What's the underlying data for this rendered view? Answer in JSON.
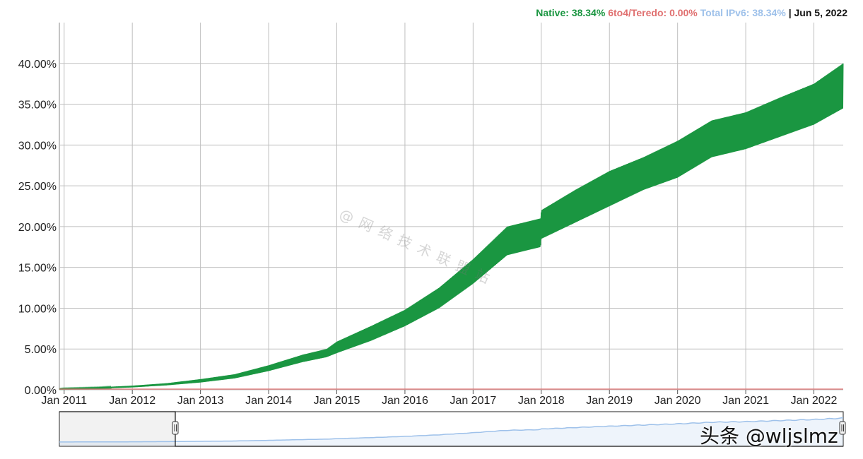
{
  "legend": {
    "native_label": "Native:",
    "native_value": "38.34%",
    "teredo_label": "6to4/Teredo:",
    "teredo_value": "0.00%",
    "total_label": "Total IPv6:",
    "total_value": "38.34%",
    "separator": "|",
    "date": "Jun 5, 2022"
  },
  "colors": {
    "native": "#1a9641",
    "teredo": "#e07070",
    "total": "#9ec1ea",
    "grid": "#bfbfbf"
  },
  "watermarks": {
    "center": "@网络技术联盟站",
    "handle": "头条 @wljslmz"
  },
  "chart_data": {
    "type": "area",
    "x_unit": "year",
    "y_unit": "percent",
    "ylim": [
      0,
      45
    ],
    "xlim": [
      2010.93,
      2022.43
    ],
    "y_ticks": [
      0,
      5,
      10,
      15,
      20,
      25,
      30,
      35,
      40
    ],
    "y_tick_labels": [
      "0.00%",
      "5.00%",
      "10.00%",
      "15.00%",
      "20.00%",
      "25.00%",
      "30.00%",
      "35.00%",
      "40.00%"
    ],
    "x_ticks": [
      2011,
      2012,
      2013,
      2014,
      2015,
      2016,
      2017,
      2018,
      2019,
      2020,
      2021,
      2022
    ],
    "x_tick_labels": [
      "Jan 2011",
      "Jan 2012",
      "Jan 2013",
      "Jan 2014",
      "Jan 2015",
      "Jan 2016",
      "Jan 2017",
      "Jan 2018",
      "Jan 2019",
      "Jan 2020",
      "Jan 2021",
      "Jan 2022"
    ],
    "grid": true,
    "legend_position": "top-right",
    "series": [
      {
        "name": "Native",
        "band": true,
        "x": [
          2010.93,
          2011.0,
          2011.5,
          2012.0,
          2012.5,
          2013.0,
          2013.5,
          2014.0,
          2014.5,
          2014.85,
          2015.0,
          2015.5,
          2016.0,
          2016.5,
          2017.0,
          2017.5,
          2017.99,
          2018.0,
          2018.5,
          2019.0,
          2019.5,
          2020.0,
          2020.5,
          2021.0,
          2021.5,
          2022.0,
          2022.43
        ],
        "low": [
          0.05,
          0.08,
          0.15,
          0.3,
          0.55,
          0.9,
          1.4,
          2.3,
          3.4,
          4.0,
          4.5,
          6.0,
          7.8,
          10.0,
          13.0,
          16.5,
          17.5,
          18.5,
          20.5,
          22.5,
          24.5,
          26.0,
          28.5,
          29.5,
          31.0,
          32.5,
          34.5
        ],
        "high": [
          0.15,
          0.2,
          0.3,
          0.5,
          0.8,
          1.3,
          1.9,
          3.0,
          4.3,
          5.0,
          5.9,
          7.8,
          9.8,
          12.5,
          16.0,
          20.0,
          21.0,
          22.0,
          24.5,
          26.8,
          28.5,
          30.5,
          33.0,
          34.0,
          35.8,
          37.5,
          40.0
        ]
      },
      {
        "name": "6to4/Teredo",
        "x": [
          2010.93,
          2022.43
        ],
        "values": [
          0.0,
          0.0
        ]
      },
      {
        "name": "Total IPv6",
        "x": [
          2010.93,
          2022.43
        ],
        "values": [
          0.1,
          38.34
        ]
      }
    ]
  }
}
